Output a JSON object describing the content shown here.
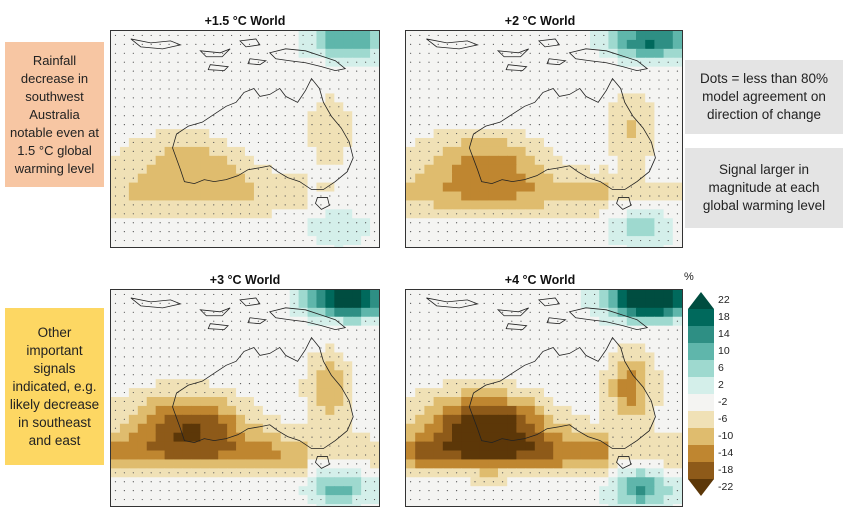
{
  "panels": [
    {
      "title": "+1.5 °C World",
      "level": 1
    },
    {
      "title": "+2 °C World",
      "level": 2
    },
    {
      "title": "+3 °C World",
      "level": 3
    },
    {
      "title": "+4 °C World",
      "level": 4
    }
  ],
  "notes": {
    "rainfall": "Rainfall decrease in southwest Australia notable even at 1.5 °C global warming level",
    "other": "Other important signals indicated, e.g. likely decrease in southeast and east",
    "dots": "Dots = less than 80% model agreement on direction of change",
    "signal": "Signal larger in magnitude at each global warming level"
  },
  "colorbar": {
    "unit": "%",
    "ticks": [
      "22",
      "18",
      "14",
      "10",
      "6",
      "2",
      "-2",
      "-6",
      "-10",
      "-14",
      "-18",
      "-22"
    ],
    "colors": [
      "#004d40",
      "#00695c",
      "#2e8f84",
      "#5fb6ab",
      "#9ed9cf",
      "#d4efea",
      "#f4f4f2",
      "#f0e1b6",
      "#dfbc6e",
      "#bf8630",
      "#8e5a19",
      "#5c3708"
    ]
  }
}
